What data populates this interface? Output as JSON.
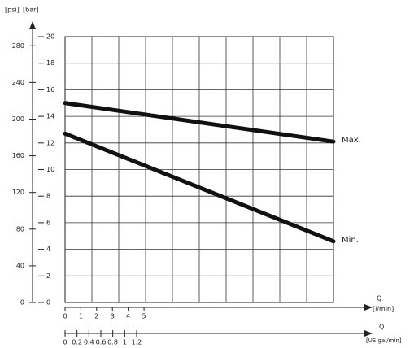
{
  "chart_data": {
    "type": "line",
    "y2label": "[psi]",
    "ylabel": "[bar]",
    "ylim": [
      0,
      20
    ],
    "yticks": [
      0,
      2,
      4,
      6,
      8,
      10,
      12,
      14,
      16,
      18,
      20
    ],
    "y2lim": [
      0,
      290
    ],
    "y2ticks": [
      0,
      40,
      80,
      120,
      160,
      200,
      240,
      280
    ],
    "xlabel": "Q",
    "xunit": "[l/min]",
    "xlim": [
      0,
      17
    ],
    "xticks": [
      0,
      1,
      2,
      3,
      4,
      5
    ],
    "x2label": "Q",
    "x2unit": "[US gal/min]",
    "x2lim": [
      0,
      4.5
    ],
    "x2ticks": [
      0,
      0.2,
      0.4,
      0.6,
      0.8,
      1,
      1.2
    ],
    "grid": true,
    "x": [
      0,
      17
    ],
    "series": [
      {
        "name": "Max.",
        "color": "#111111",
        "values": [
          15,
          12.1
        ]
      },
      {
        "name": "Min.",
        "color": "#111111",
        "values": [
          12.7,
          4.6
        ]
      }
    ]
  }
}
